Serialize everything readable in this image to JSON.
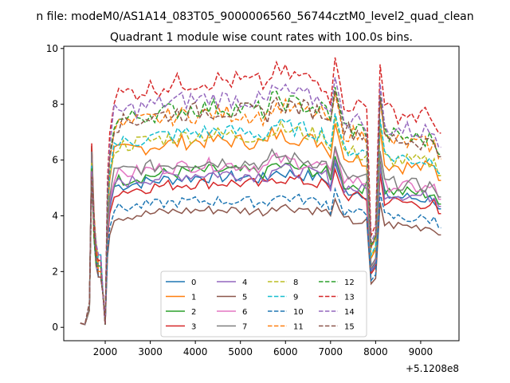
{
  "suptitle": "n file: modeM0/AS1A14_083T05_9000006560_56744cztM0_level2_quad_clean",
  "chart_data": {
    "type": "line",
    "title": "Quadrant 1 module wise count rates with 100.0s bins.",
    "xlabel": "",
    "ylabel": "",
    "offset_text": "+5.1208e8",
    "xlim": [
      1080,
      9850
    ],
    "ylim": [
      -0.48,
      10.08
    ],
    "xticks": [
      2000,
      3000,
      4000,
      5000,
      6000,
      7000,
      8000,
      9000
    ],
    "yticks": [
      0,
      2,
      4,
      6,
      8,
      10
    ],
    "grid": false,
    "legend_placement": "lower center",
    "legend_columns": 4,
    "x": [
      1450,
      1550,
      1650,
      1700,
      1750,
      1800,
      1850,
      1900,
      1950,
      2000,
      2050,
      2100,
      2200,
      2300,
      2400,
      2500,
      2600,
      2700,
      2800,
      2900,
      3000,
      3100,
      3200,
      3300,
      3400,
      3500,
      3600,
      3700,
      3800,
      3900,
      4000,
      4100,
      4200,
      4300,
      4400,
      4500,
      4600,
      4700,
      4800,
      4900,
      5000,
      5100,
      5200,
      5300,
      5400,
      5500,
      5600,
      5700,
      5800,
      5900,
      6000,
      6100,
      6200,
      6300,
      6400,
      6500,
      6600,
      6700,
      6800,
      6900,
      7000,
      7100,
      7200,
      7300,
      7400,
      7500,
      7600,
      7700,
      7800,
      7900,
      8000,
      8100,
      8200,
      8300,
      8400,
      8500,
      8600,
      8700,
      8800,
      8900,
      9000,
      9100,
      9200,
      9300,
      9400,
      9450
    ],
    "series": [
      {
        "name": "0",
        "color": "#1f77b4",
        "dash": "solid",
        "base": 5.0,
        "spike": 6.5
      },
      {
        "name": "1",
        "color": "#ff7f0e",
        "dash": "solid",
        "base": 6.2,
        "spike": 6.4
      },
      {
        "name": "2",
        "color": "#2ca02c",
        "dash": "solid",
        "base": 5.2,
        "spike": 6.5
      },
      {
        "name": "3",
        "color": "#d62728",
        "dash": "solid",
        "base": 4.8,
        "spike": 6.6
      },
      {
        "name": "4",
        "color": "#9467bd",
        "dash": "solid",
        "base": 5.1,
        "spike": 6.3
      },
      {
        "name": "5",
        "color": "#8c564b",
        "dash": "solid",
        "base": 3.9,
        "spike": 5.5
      },
      {
        "name": "6",
        "color": "#e377c2",
        "dash": "solid",
        "base": 5.4,
        "spike": 6.2
      },
      {
        "name": "7",
        "color": "#7f7f7f",
        "dash": "solid",
        "base": 5.5,
        "spike": 6.3
      },
      {
        "name": "8",
        "color": "#bcbd22",
        "dash": "dashed",
        "base": 6.4,
        "spike": 5.9
      },
      {
        "name": "9",
        "color": "#17becf",
        "dash": "dashed",
        "base": 6.5,
        "spike": 5.8
      },
      {
        "name": "10",
        "color": "#1f77b4",
        "dash": "dashed",
        "base": 4.2,
        "spike": 5.3
      },
      {
        "name": "11",
        "color": "#ff7f0e",
        "dash": "dashed",
        "base": 7.1,
        "spike": 5.6
      },
      {
        "name": "12",
        "color": "#2ca02c",
        "dash": "dashed",
        "base": 7.3,
        "spike": 5.7
      },
      {
        "name": "13",
        "color": "#d62728",
        "dash": "dashed",
        "base": 8.2,
        "spike": 5.6
      },
      {
        "name": "14",
        "color": "#9467bd",
        "dash": "dashed",
        "base": 7.6,
        "spike": 5.6
      },
      {
        "name": "15",
        "color": "#8c564b",
        "dash": "dashed",
        "base": 7.2,
        "spike": 5.4
      }
    ]
  }
}
